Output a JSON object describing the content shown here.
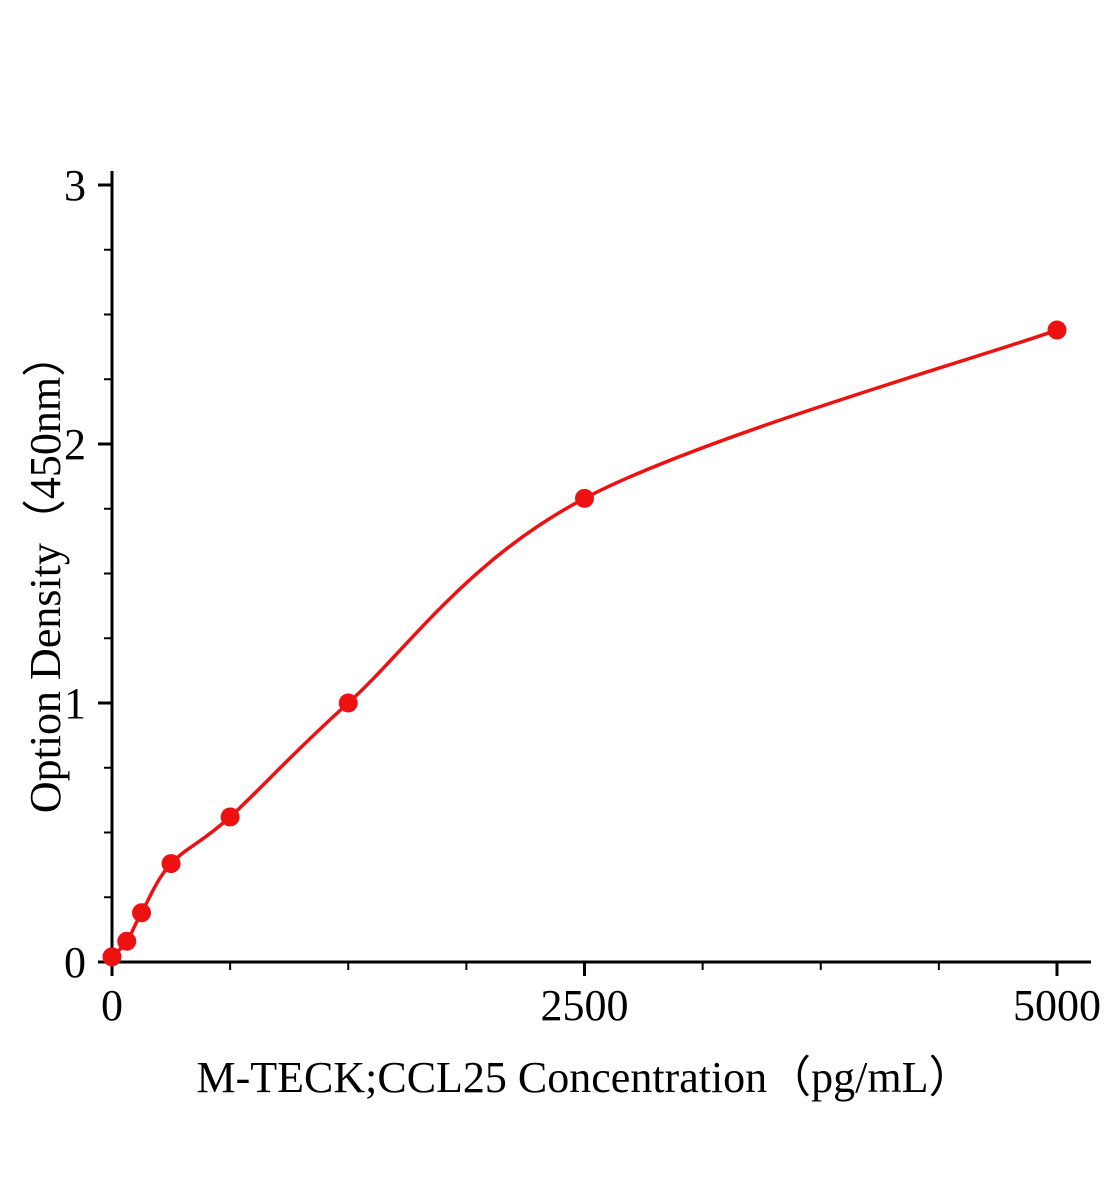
{
  "page": {
    "background_color": "#ffffff",
    "text_color": "#000000"
  },
  "chart_data": {
    "type": "scatter",
    "title": "",
    "xlabel": "M-TECK;CCL25 Concentration（pg/mL）",
    "ylabel": "Option Density（450nm）",
    "x": [
      0,
      78.125,
      156.25,
      312.5,
      625,
      1250,
      2500,
      5000
    ],
    "y": [
      0.02,
      0.08,
      0.19,
      0.38,
      0.56,
      1.0,
      1.79,
      2.44
    ],
    "xlim": [
      0,
      5000
    ],
    "ylim": [
      0,
      3
    ],
    "x_ticks": [
      0,
      2500,
      5000
    ],
    "y_ticks": [
      0,
      1,
      2,
      3
    ],
    "x_minor_ticks": [
      625,
      1250,
      1875,
      3125,
      3750,
      4375
    ],
    "y_minor_ticks": [
      0.25,
      0.5,
      0.75,
      1.25,
      1.5,
      1.75,
      2.25,
      2.5,
      2.75
    ],
    "grid": false,
    "legend": null,
    "line_color": "#ee1111",
    "point_color": "#ee1111",
    "axis_color": "#000000",
    "point_radius": 9.5,
    "curve_width": 3.5
  }
}
